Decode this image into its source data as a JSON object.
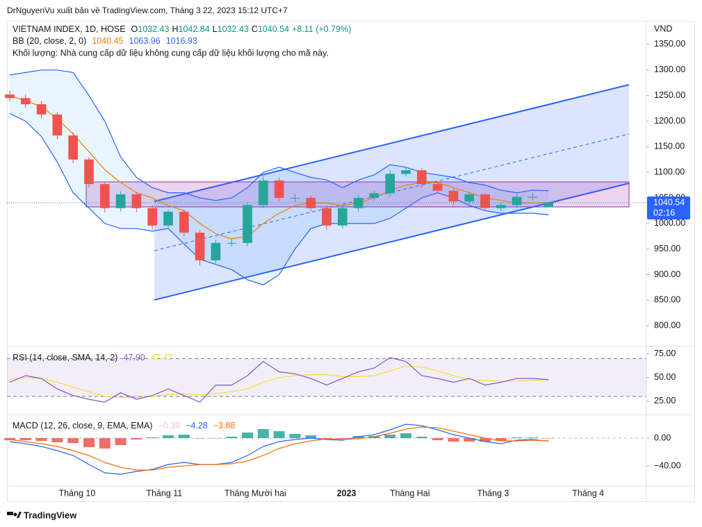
{
  "header": {
    "publisher": "DrNguyenVu xuất bản về TradingView.com, Tháng 3 22, 2023 15:12 UTC+7",
    "symbol": "VIETNAM INDEX, 1D, HOSE",
    "o": "O",
    "h": "H",
    "l": "L",
    "c": "C",
    "change": "+8.11 (+0.79%)",
    "bb": "BB (20, close, 2, 0)",
    "volume_note": "Khối lượng: Nhà cung cấp dữ liệu không cung cấp dữ liệu khối lượng cho mã này.",
    "currency": "VND",
    "countdown": "02:16",
    "footer": "TradingView"
  },
  "chart_data": [
    {
      "type": "candlestick",
      "x": [
        0,
        4,
        8,
        12,
        16,
        20,
        24,
        28,
        32,
        36,
        40,
        44,
        48,
        52,
        56,
        60,
        64,
        68,
        72,
        76,
        80,
        84,
        88,
        92,
        96,
        100,
        104,
        108,
        112,
        116,
        120,
        124,
        128,
        132,
        136
      ],
      "open": [
        1252,
        1245,
        1233,
        1213,
        1172,
        1125,
        1077,
        1030,
        1057,
        1030,
        996,
        1023,
        982,
        928,
        962,
        962,
        1036,
        1084,
        1050,
        1050,
        1030,
        996,
        1030,
        1050,
        1059,
        1097,
        1104,
        1077,
        1064,
        1043,
        1057,
        1030,
        1036,
        1052,
        1032.43
      ],
      "high": [
        1260,
        1252,
        1240,
        1218,
        1178,
        1130,
        1082,
        1063,
        1062,
        1036,
        1028,
        1028,
        988,
        968,
        970,
        1042,
        1092,
        1090,
        1058,
        1055,
        1035,
        1035,
        1056,
        1064,
        1104,
        1110,
        1108,
        1082,
        1068,
        1062,
        1060,
        1040,
        1058,
        1060,
        1042.84
      ],
      "low": [
        1238,
        1226,
        1205,
        1165,
        1118,
        1070,
        1022,
        1024,
        1022,
        988,
        990,
        975,
        918,
        922,
        955,
        955,
        1030,
        1044,
        1042,
        1024,
        988,
        990,
        1024,
        1044,
        1052,
        1092,
        1070,
        1058,
        1036,
        1037,
        1024,
        1024,
        1030,
        1045,
        1032.43
      ],
      "close": [
        1245,
        1233,
        1213,
        1172,
        1125,
        1077,
        1030,
        1057,
        1030,
        996,
        1023,
        982,
        928,
        962,
        962,
        1036,
        1084,
        1050,
        1050,
        1030,
        996,
        1030,
        1050,
        1059,
        1097,
        1104,
        1077,
        1064,
        1043,
        1057,
        1030,
        1036,
        1052,
        1052,
        1040.54
      ],
      "up_color": "#26a69a",
      "down_color": "#ef5350",
      "series": [
        {
          "name": "Basis",
          "color": "#f57c00",
          "values": [
            1250,
            1240,
            1228,
            1205,
            1175,
            1140,
            1105,
            1080,
            1060,
            1050,
            1035,
            1025,
            1000,
            980,
            970,
            975,
            1000,
            1020,
            1035,
            1040,
            1040,
            1035,
            1040,
            1050,
            1065,
            1075,
            1080,
            1080,
            1070,
            1060,
            1050,
            1045,
            1040,
            1040,
            1040.45
          ]
        },
        {
          "name": "Upper",
          "color": "#2962ff",
          "values": [
            1290,
            1295,
            1300,
            1300,
            1295,
            1250,
            1200,
            1130,
            1090,
            1070,
            1060,
            1060,
            1050,
            1045,
            1050,
            1070,
            1100,
            1110,
            1100,
            1090,
            1085,
            1070,
            1085,
            1095,
            1115,
            1110,
            1100,
            1095,
            1090,
            1080,
            1075,
            1065,
            1060,
            1065,
            1063.96
          ]
        },
        {
          "name": "Lower",
          "color": "#2962ff",
          "values": [
            1215,
            1200,
            1170,
            1120,
            1060,
            1030,
            1000,
            990,
            990,
            985,
            990,
            960,
            930,
            920,
            910,
            890,
            880,
            900,
            950,
            990,
            1000,
            1000,
            1000,
            1000,
            1010,
            1030,
            1050,
            1060,
            1050,
            1035,
            1025,
            1020,
            1020,
            1020,
            1016.93
          ]
        }
      ],
      "xlim": [
        -0.7,
        160.7
      ],
      "xticks": [
        {
          "value": 17,
          "label": "Tháng 10"
        },
        {
          "value": 39,
          "label": "Tháng 11"
        },
        {
          "value": 62,
          "label": "Tháng Mười hai"
        },
        {
          "value": 85,
          "label": "2023"
        },
        {
          "value": 101,
          "label": "Tháng Hai"
        },
        {
          "value": 122,
          "label": "Tháng 3"
        },
        {
          "value": 146,
          "label": "Tháng 4"
        }
      ],
      "ylim": [
        761,
        1396
      ],
      "yticks": [
        {
          "value": 800,
          "label": "800.00"
        },
        {
          "value": 850,
          "label": "850.00"
        },
        {
          "value": 900,
          "label": "900.00"
        },
        {
          "value": 950,
          "label": "950.00"
        },
        {
          "value": 1000,
          "label": "1000.00"
        },
        {
          "value": 1050,
          "label": "1050.00"
        },
        {
          "value": 1100,
          "label": "1100.00"
        },
        {
          "value": 1150,
          "label": "1150.00"
        },
        {
          "value": 1200,
          "label": "1200.00"
        },
        {
          "value": 1250,
          "label": "1250.00"
        },
        {
          "value": 1300,
          "label": "1300.00"
        },
        {
          "value": 1350,
          "label": "1350.00"
        }
      ]
    },
    {
      "type": "line",
      "legend": "RSI (14, close, SMA, 14, 2)",
      "legend_values": [
        "47.90",
        "47.47"
      ],
      "x": [
        0,
        4,
        8,
        12,
        16,
        20,
        24,
        28,
        32,
        36,
        40,
        44,
        48,
        52,
        56,
        60,
        64,
        68,
        72,
        76,
        80,
        84,
        88,
        92,
        96,
        100,
        104,
        108,
        112,
        116,
        120,
        124,
        128,
        132,
        136
      ],
      "series": [
        {
          "name": "RSI",
          "color": "#7e57c2",
          "values": [
            45,
            52,
            49,
            38,
            31,
            27,
            24,
            34,
            27,
            31,
            38,
            31,
            24,
            42,
            42,
            52,
            67,
            56,
            54,
            49,
            42,
            49,
            56,
            60,
            71,
            67,
            52,
            49,
            45,
            49,
            42,
            45,
            49,
            49,
            47.9
          ]
        },
        {
          "name": "SMA",
          "color": "#fdd835",
          "values": [
            48,
            50,
            49,
            45,
            40,
            35,
            30,
            29,
            29,
            30,
            32,
            33,
            32,
            33,
            35,
            38,
            45,
            50,
            52,
            53,
            53,
            51,
            51,
            52,
            57,
            62,
            61,
            57,
            52,
            48,
            47,
            46,
            46,
            47,
            47.47
          ]
        }
      ],
      "band": [
        30,
        70
      ],
      "ylim": [
        11,
        82
      ],
      "yticks": [
        {
          "value": 25,
          "label": "25.00"
        },
        {
          "value": 50,
          "label": "50.00"
        },
        {
          "value": 75,
          "label": "75.00"
        }
      ]
    },
    {
      "type": "macd",
      "legend": "MACD (12, 26, close, 9, EMA, EMA)",
      "legend_values": [
        "−0.39",
        "−4.28",
        "−3.88"
      ],
      "x": [
        0,
        4,
        8,
        12,
        16,
        20,
        24,
        28,
        32,
        36,
        40,
        44,
        48,
        52,
        56,
        60,
        64,
        68,
        72,
        76,
        80,
        84,
        88,
        92,
        96,
        100,
        104,
        108,
        112,
        116,
        120,
        124,
        128,
        132,
        136
      ],
      "histogram": {
        "name": "Histogram",
        "up_color": "#26a69a",
        "down_color": "#ef5350",
        "values": [
          -3,
          -3,
          -4,
          -6,
          -7,
          -13,
          -15,
          -10,
          -2,
          1,
          4,
          5,
          0,
          0,
          2,
          8,
          13,
          10,
          6,
          4,
          -1,
          -1,
          3,
          3,
          5,
          7,
          2,
          -3,
          -5,
          -5,
          -5,
          -4,
          1,
          1,
          -0.39
        ]
      },
      "series": [
        {
          "name": "MACD",
          "color": "#2962ff",
          "values": [
            -5,
            -8,
            -12,
            -18,
            -25,
            -38,
            -50,
            -52,
            -48,
            -45,
            -38,
            -35,
            -38,
            -38,
            -35,
            -25,
            -12,
            -5,
            -2,
            0,
            -2,
            -3,
            2,
            5,
            12,
            20,
            18,
            12,
            5,
            0,
            -5,
            -8,
            -3,
            -2,
            -4.28
          ]
        },
        {
          "name": "Signal",
          "color": "#ff6d00",
          "values": [
            -2,
            -5,
            -8,
            -12,
            -18,
            -25,
            -35,
            -42,
            -46,
            -46,
            -42,
            -40,
            -38,
            -38,
            -37,
            -33,
            -25,
            -15,
            -8,
            -4,
            -1,
            -2,
            -1,
            2,
            7,
            13,
            16,
            15,
            10,
            5,
            0,
            -4,
            -4,
            -3,
            -3.88
          ]
        }
      ],
      "ylim": [
        -69,
        33
      ],
      "yticks": [
        {
          "value": 0,
          "label": "0.00"
        },
        {
          "value": -40,
          "label": "−40.00"
        }
      ]
    }
  ]
}
